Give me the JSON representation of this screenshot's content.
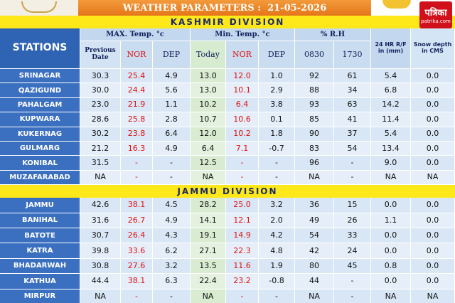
{
  "header": {
    "title": "WEATHER PARAMETERS :  21-05-2026",
    "logo_hindi": "पत्रिका",
    "logo_site": "patrika.com"
  },
  "columns": {
    "stations": "STATIONS",
    "max_temp": "MAX. Temp. °c",
    "min_temp": "Min. Temp. °c",
    "rh": "% R.H",
    "rainfall": "24 HR R/F in (mm)",
    "snow": "Snow depth in CMS",
    "sub": [
      "Previous Date",
      "NOR",
      "DEP",
      "Today",
      "NOR",
      "DEP",
      "0830",
      "1730"
    ]
  },
  "kashmir": {
    "title": "KASHMIR DIVISION",
    "rows": [
      [
        "SRINAGAR",
        "30.3",
        "25.4",
        "4.9",
        "13.0",
        "12.0",
        "1.0",
        "92",
        "61",
        "5.4",
        "0.0"
      ],
      [
        "QAZIGUND",
        "30.0",
        "24.4",
        "5.6",
        "13.0",
        "10.1",
        "2.9",
        "88",
        "34",
        "6.8",
        "0.0"
      ],
      [
        "PAHALGAM",
        "23.0",
        "21.9",
        "1.1",
        "10.2",
        "6.4",
        "3.8",
        "93",
        "63",
        "14.2",
        "0.0"
      ],
      [
        "KUPWARA",
        "28.6",
        "25.8",
        "2.8",
        "10.7",
        "10.6",
        "0.1",
        "85",
        "41",
        "11.4",
        "0.0"
      ],
      [
        "KUKERNAG",
        "30.2",
        "23.8",
        "6.4",
        "12.0",
        "10.2",
        "1.8",
        "90",
        "37",
        "5.4",
        "0.0"
      ],
      [
        "GULMARG",
        "21.2",
        "16.3",
        "4.9",
        "6.4",
        "7.1",
        "-0.7",
        "83",
        "54",
        "13.4",
        "0.0"
      ],
      [
        "KONIBAL",
        "31.5",
        "-",
        "-",
        "12.5",
        "-",
        "-",
        "96",
        "-",
        "9.0",
        "0.0"
      ],
      [
        "MUZAFARABAD",
        "NA",
        "-",
        "-",
        "NA",
        "-",
        "-",
        "NA",
        "-",
        "NA",
        "NA"
      ]
    ]
  },
  "jammu": {
    "title": "JAMMU DIVISION",
    "rows": [
      [
        "JAMMU",
        "42.6",
        "38.1",
        "4.5",
        "28.2",
        "25.0",
        "3.2",
        "36",
        "15",
        "0.0",
        "0.0"
      ],
      [
        "BANIHAL",
        "31.6",
        "26.7",
        "4.9",
        "14.1",
        "12.1",
        "2.0",
        "49",
        "26",
        "1.1",
        "0.0"
      ],
      [
        "BATOTE",
        "30.7",
        "26.4",
        "4.3",
        "19.1",
        "14.9",
        "4.2",
        "54",
        "33",
        "0.0",
        "0.0"
      ],
      [
        "KATRA",
        "39.8",
        "33.6",
        "6.2",
        "27.1",
        "22.3",
        "4.8",
        "42",
        "24",
        "0.0",
        "0.0"
      ],
      [
        "BHADARWAH",
        "30.8",
        "27.6",
        "3.2",
        "13.5",
        "11.6",
        "1.9",
        "80",
        "45",
        "0.8",
        "0.0"
      ],
      [
        "KATHUA",
        "44.4",
        "38.1",
        "6.3",
        "22.4",
        "23.2",
        "-0.8",
        "44",
        "-",
        "0.0",
        "0.0"
      ],
      [
        "MIRPUR",
        "NA",
        "-",
        "-",
        "NA",
        "-",
        "-",
        "NA",
        "-",
        "NA",
        "NA"
      ]
    ]
  }
}
